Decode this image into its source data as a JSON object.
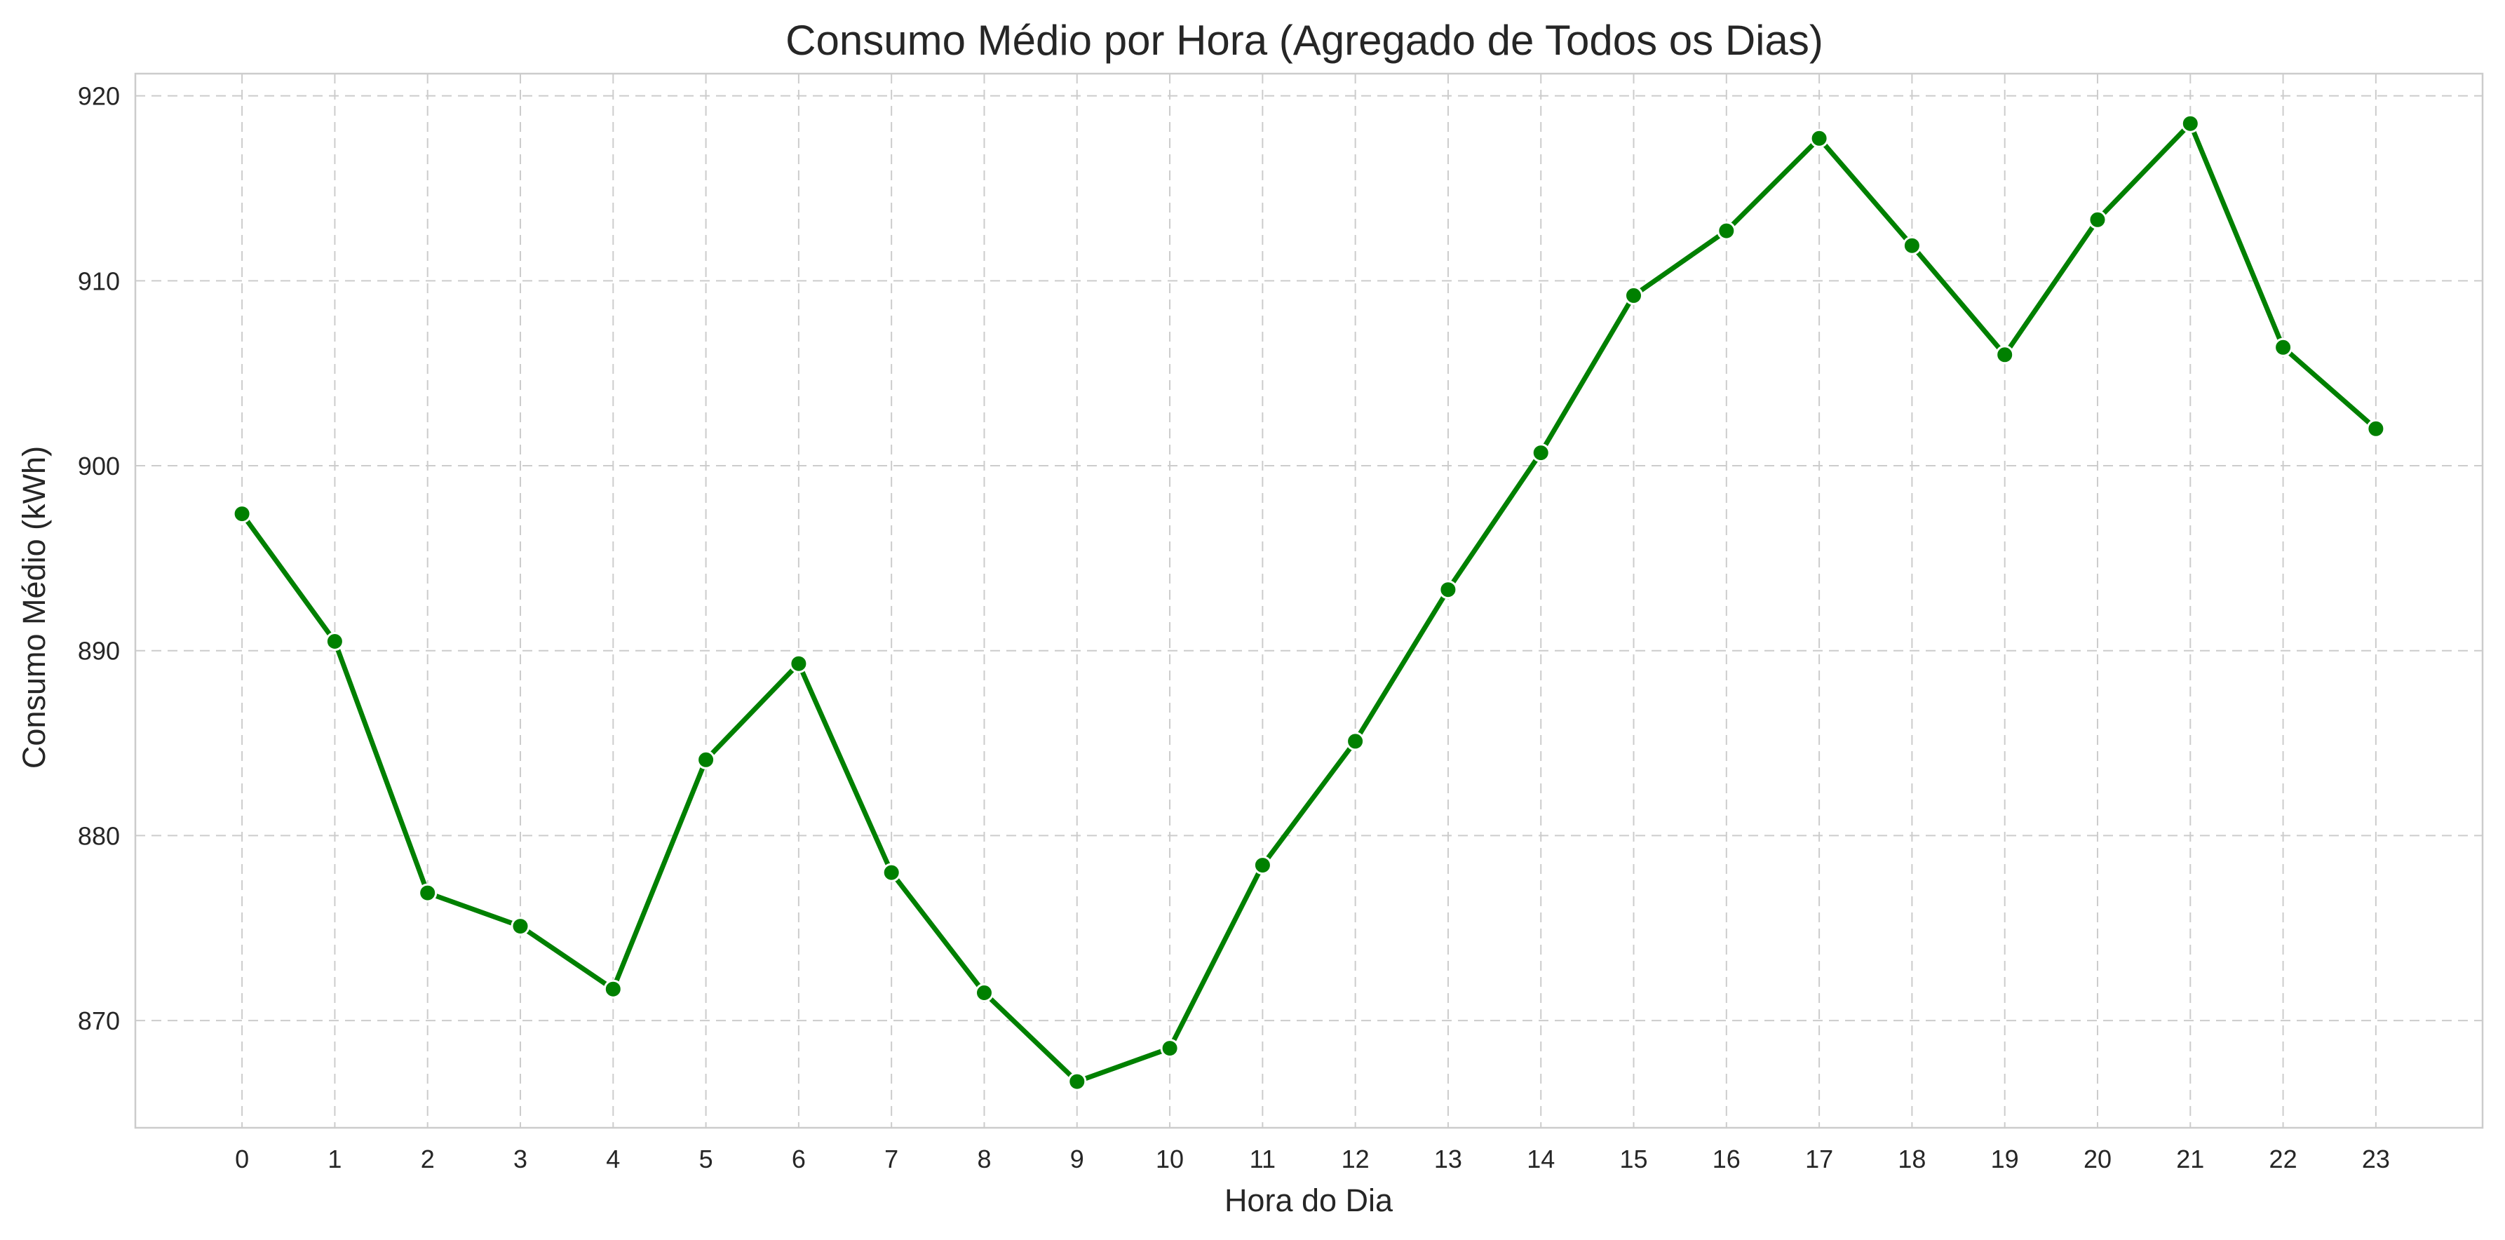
{
  "chart_data": {
    "type": "line",
    "title": "Consumo Médio por Hora (Agregado de Todos os Dias)",
    "xlabel": "Hora do Dia",
    "ylabel": "Consumo Médio (kWh)",
    "x": [
      0,
      1,
      2,
      3,
      4,
      5,
      6,
      7,
      8,
      9,
      10,
      11,
      12,
      13,
      14,
      15,
      16,
      17,
      18,
      19,
      20,
      21,
      22,
      23
    ],
    "x_tick_labels": [
      "0",
      "1",
      "2",
      "3",
      "4",
      "5",
      "6",
      "7",
      "8",
      "9",
      "10",
      "11",
      "12",
      "13",
      "14",
      "15",
      "16",
      "17",
      "18",
      "19",
      "20",
      "21",
      "22",
      "23"
    ],
    "series": [
      {
        "values": [
          897.4,
          890.5,
          876.9,
          875.1,
          871.7,
          884.1,
          889.3,
          878.0,
          871.5,
          866.7,
          868.5,
          878.4,
          885.1,
          893.3,
          900.7,
          909.2,
          912.7,
          917.7,
          911.9,
          906.0,
          913.3,
          918.5,
          906.4,
          902.0
        ],
        "color": "#008000",
        "marker": "circle"
      }
    ],
    "xlim": [
      -1.15,
      24.15
    ],
    "ylim": [
      864.2,
      921.2
    ],
    "y_ticks": [
      870,
      880,
      890,
      900,
      910,
      920
    ],
    "y_tick_labels": [
      "870",
      "880",
      "890",
      "900",
      "910",
      "920"
    ],
    "grid": true,
    "grid_style": "dashed",
    "legend": false
  }
}
